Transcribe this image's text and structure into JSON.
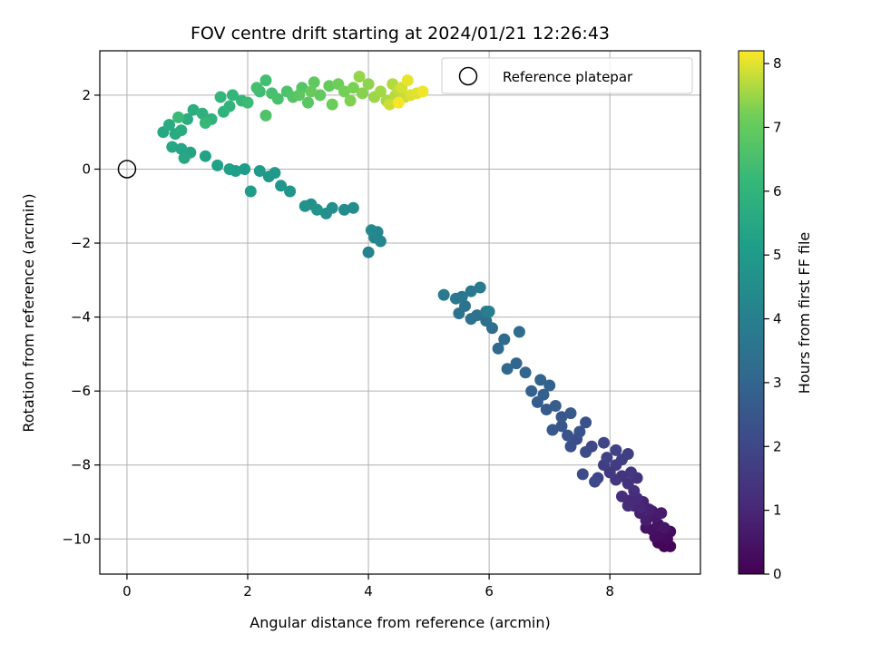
{
  "chart_data": {
    "type": "scatter",
    "title": "FOV centre drift starting at 2024/01/21 12:26:43",
    "xlabel": "Angular distance from reference (arcmin)",
    "ylabel": "Rotation from reference (arcmin)",
    "xlim": [
      -0.45,
      9.5
    ],
    "ylim": [
      -10.95,
      3.2
    ],
    "xticks": [
      0,
      2,
      4,
      6,
      8
    ],
    "yticks": [
      -10,
      -8,
      -6,
      -4,
      -2,
      0,
      2
    ],
    "xtick_labels": [
      "0",
      "2",
      "4",
      "6",
      "8"
    ],
    "ytick_labels": [
      "−10",
      "−8",
      "−6",
      "−4",
      "−2",
      "0",
      "2"
    ],
    "grid": true,
    "legend_position": "top-right",
    "colormap": "viridis",
    "colorbar": {
      "label": "Hours from first FF file",
      "range": [
        0,
        8.2
      ],
      "ticks": [
        0,
        1,
        2,
        3,
        4,
        5,
        6,
        7,
        8
      ],
      "tick_labels": [
        "0",
        "1",
        "2",
        "3",
        "4",
        "5",
        "6",
        "7",
        "8"
      ]
    },
    "reference_marker": {
      "label": "Reference platepar",
      "x": 0,
      "y": 0
    },
    "series": [
      {
        "name": "FOV centre",
        "points": [
          [
            8.9,
            -10.2,
            0.05
          ],
          [
            9.0,
            -10.2,
            0.1
          ],
          [
            8.8,
            -10.1,
            0.15
          ],
          [
            8.95,
            -10.0,
            0.2
          ],
          [
            9.0,
            -9.8,
            0.25
          ],
          [
            8.85,
            -9.9,
            0.3
          ],
          [
            8.75,
            -9.95,
            0.35
          ],
          [
            8.7,
            -9.75,
            0.4
          ],
          [
            8.6,
            -9.7,
            0.45
          ],
          [
            8.8,
            -9.6,
            0.5
          ],
          [
            8.9,
            -9.7,
            0.55
          ],
          [
            8.75,
            -9.4,
            0.6
          ],
          [
            8.7,
            -9.25,
            0.65
          ],
          [
            8.85,
            -9.3,
            0.7
          ],
          [
            8.6,
            -9.5,
            0.75
          ],
          [
            8.5,
            -9.3,
            0.8
          ],
          [
            8.65,
            -9.2,
            0.85
          ],
          [
            8.55,
            -9.0,
            0.9
          ],
          [
            8.4,
            -9.1,
            0.95
          ],
          [
            8.5,
            -9.15,
            1.0
          ],
          [
            8.35,
            -8.95,
            1.05
          ],
          [
            8.45,
            -8.9,
            1.1
          ],
          [
            8.3,
            -9.1,
            1.15
          ],
          [
            8.2,
            -8.85,
            1.2
          ],
          [
            8.4,
            -8.7,
            1.25
          ],
          [
            8.45,
            -8.35,
            1.3
          ],
          [
            8.3,
            -8.5,
            1.35
          ],
          [
            8.2,
            -8.3,
            1.4
          ],
          [
            8.1,
            -8.4,
            1.45
          ],
          [
            8.35,
            -8.2,
            1.5
          ],
          [
            8.0,
            -8.2,
            1.55
          ],
          [
            8.1,
            -8.0,
            1.6
          ],
          [
            7.9,
            -8.0,
            1.65
          ],
          [
            8.2,
            -7.85,
            1.7
          ],
          [
            8.3,
            -7.7,
            1.75
          ],
          [
            7.95,
            -7.8,
            1.8
          ],
          [
            8.1,
            -7.6,
            1.85
          ],
          [
            7.8,
            -8.35,
            1.9
          ],
          [
            7.9,
            -7.4,
            1.95
          ],
          [
            7.7,
            -7.5,
            2.0
          ],
          [
            7.75,
            -8.45,
            2.05
          ],
          [
            7.6,
            -7.65,
            2.1
          ],
          [
            7.55,
            -8.25,
            2.15
          ],
          [
            7.45,
            -7.3,
            2.2
          ],
          [
            7.35,
            -7.5,
            2.25
          ],
          [
            7.6,
            -6.85,
            2.3
          ],
          [
            7.5,
            -7.1,
            2.35
          ],
          [
            7.3,
            -7.2,
            2.4
          ],
          [
            7.2,
            -6.95,
            2.45
          ],
          [
            7.05,
            -7.05,
            2.5
          ],
          [
            7.2,
            -6.7,
            2.55
          ],
          [
            7.35,
            -6.6,
            2.6
          ],
          [
            6.95,
            -6.5,
            2.65
          ],
          [
            7.1,
            -6.4,
            2.7
          ],
          [
            6.8,
            -6.3,
            2.75
          ],
          [
            6.9,
            -6.1,
            2.8
          ],
          [
            6.7,
            -6.0,
            2.85
          ],
          [
            7.0,
            -5.85,
            2.9
          ],
          [
            6.85,
            -5.7,
            2.95
          ],
          [
            6.6,
            -5.5,
            3.0
          ],
          [
            6.45,
            -5.25,
            3.05
          ],
          [
            6.3,
            -5.4,
            3.1
          ],
          [
            6.15,
            -4.85,
            3.15
          ],
          [
            6.25,
            -4.6,
            3.2
          ],
          [
            6.5,
            -4.4,
            3.25
          ],
          [
            6.05,
            -4.3,
            3.3
          ],
          [
            5.95,
            -4.1,
            3.35
          ],
          [
            5.8,
            -3.95,
            3.4
          ],
          [
            5.7,
            -4.05,
            3.45
          ],
          [
            5.5,
            -3.9,
            3.5
          ],
          [
            5.6,
            -3.7,
            3.55
          ],
          [
            5.55,
            -3.45,
            3.6
          ],
          [
            5.45,
            -3.5,
            3.65
          ],
          [
            5.7,
            -3.3,
            3.7
          ],
          [
            5.85,
            -3.2,
            3.75
          ],
          [
            5.25,
            -3.4,
            3.8
          ],
          [
            5.95,
            -3.85,
            3.85
          ],
          [
            6.0,
            -3.85,
            3.9
          ],
          [
            4.0,
            -2.25,
            4.15
          ],
          [
            4.1,
            -1.85,
            4.2
          ],
          [
            4.2,
            -1.95,
            4.25
          ],
          [
            4.15,
            -1.7,
            4.3
          ],
          [
            4.05,
            -1.65,
            4.35
          ],
          [
            3.75,
            -1.05,
            4.45
          ],
          [
            3.6,
            -1.1,
            4.5
          ],
          [
            3.4,
            -1.05,
            4.55
          ],
          [
            3.3,
            -1.2,
            4.6
          ],
          [
            3.05,
            -0.95,
            4.65
          ],
          [
            2.95,
            -1.0,
            4.7
          ],
          [
            3.15,
            -1.1,
            4.75
          ],
          [
            2.7,
            -0.6,
            4.8
          ],
          [
            2.55,
            -0.45,
            4.85
          ],
          [
            2.45,
            -0.1,
            4.9
          ],
          [
            2.35,
            -0.2,
            4.95
          ],
          [
            2.2,
            -0.05,
            5.0
          ],
          [
            2.05,
            -0.6,
            5.05
          ],
          [
            1.95,
            0.0,
            5.1
          ],
          [
            1.8,
            -0.05,
            5.15
          ],
          [
            1.7,
            0.0,
            5.2
          ],
          [
            1.5,
            0.1,
            5.25
          ],
          [
            1.3,
            0.35,
            5.3
          ],
          [
            1.05,
            0.45,
            5.35
          ],
          [
            0.9,
            0.55,
            5.4
          ],
          [
            0.75,
            0.6,
            5.45
          ],
          [
            0.95,
            0.3,
            5.5
          ],
          [
            0.6,
            1.0,
            5.55
          ],
          [
            0.8,
            0.95,
            5.6
          ],
          [
            0.7,
            1.2,
            5.65
          ],
          [
            0.9,
            1.05,
            5.7
          ],
          [
            1.0,
            1.35,
            5.75
          ],
          [
            1.1,
            1.6,
            5.8
          ],
          [
            1.25,
            1.5,
            5.85
          ],
          [
            1.4,
            1.35,
            5.9
          ],
          [
            1.6,
            1.55,
            5.95
          ],
          [
            1.7,
            1.7,
            6.0
          ],
          [
            1.55,
            1.95,
            6.05
          ],
          [
            1.75,
            2.0,
            6.1
          ],
          [
            1.9,
            1.85,
            6.15
          ],
          [
            1.3,
            1.25,
            6.2
          ],
          [
            0.85,
            1.4,
            6.25
          ],
          [
            2.0,
            1.8,
            6.3
          ],
          [
            2.2,
            2.1,
            6.35
          ],
          [
            2.3,
            2.4,
            6.4
          ],
          [
            2.15,
            2.2,
            6.45
          ],
          [
            2.4,
            2.05,
            6.5
          ],
          [
            2.5,
            1.9,
            6.55
          ],
          [
            2.65,
            2.1,
            6.6
          ],
          [
            2.3,
            1.45,
            6.65
          ],
          [
            2.75,
            1.95,
            6.7
          ],
          [
            2.9,
            2.2,
            6.75
          ],
          [
            3.0,
            1.8,
            6.8
          ],
          [
            2.85,
            2.0,
            6.85
          ],
          [
            3.1,
            2.35,
            6.9
          ],
          [
            3.2,
            2.0,
            6.95
          ],
          [
            3.35,
            2.25,
            7.0
          ],
          [
            3.05,
            2.1,
            7.05
          ],
          [
            3.4,
            1.75,
            7.1
          ],
          [
            3.5,
            2.3,
            7.15
          ],
          [
            3.6,
            2.1,
            7.2
          ],
          [
            3.75,
            2.2,
            7.25
          ],
          [
            3.7,
            1.85,
            7.3
          ],
          [
            3.9,
            2.05,
            7.35
          ],
          [
            4.0,
            2.3,
            7.4
          ],
          [
            3.85,
            2.5,
            7.45
          ],
          [
            4.1,
            1.95,
            7.5
          ],
          [
            4.2,
            2.1,
            7.55
          ],
          [
            4.3,
            1.85,
            7.6
          ],
          [
            4.4,
            2.3,
            7.65
          ],
          [
            4.45,
            2.0,
            7.7
          ],
          [
            4.5,
            2.15,
            7.75
          ],
          [
            4.6,
            1.95,
            7.8
          ],
          [
            4.35,
            1.75,
            7.85
          ],
          [
            4.55,
            2.2,
            7.9
          ],
          [
            4.7,
            2.0,
            7.95
          ],
          [
            4.8,
            2.05,
            8.0
          ],
          [
            4.65,
            2.4,
            8.05
          ],
          [
            4.9,
            2.1,
            8.1
          ],
          [
            4.5,
            1.8,
            8.15
          ]
        ]
      }
    ]
  }
}
